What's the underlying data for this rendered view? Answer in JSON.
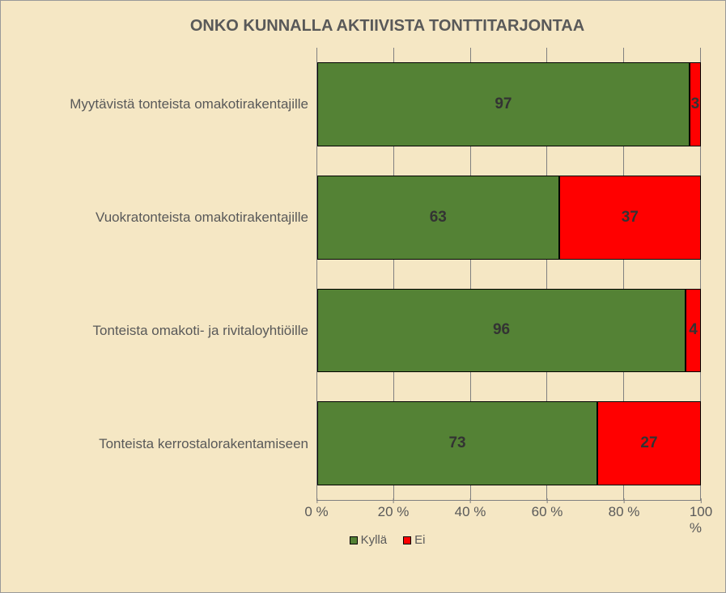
{
  "chart": {
    "type": "stacked-horizontal-bar",
    "title": "ONKO KUNNALLA AKTIIVISTA TONTTITARJONTAA",
    "title_fontsize": 20,
    "title_color": "#595959",
    "background_color": "#f5e7c4",
    "colors": {
      "yes": "#548235",
      "no": "#ff0000"
    },
    "categories": [
      {
        "label": "Myytävistä tonteista omakotirakentajille",
        "yes": 97,
        "no": 3
      },
      {
        "label": "Vuokratonteista omakotirakentajille",
        "yes": 63,
        "no": 37
      },
      {
        "label": "Tonteista omakoti- ja rivitaloyhtiöille",
        "yes": 96,
        "no": 4
      },
      {
        "label": "Tonteista kerrostalorakentamiseen",
        "yes": 73,
        "no": 27
      }
    ],
    "x_ticks": [
      "0 %",
      "20 %",
      "40 %",
      "60 %",
      "80 %",
      "100 %"
    ],
    "x_tick_positions": [
      0,
      20,
      40,
      60,
      80,
      100
    ],
    "xlim": [
      0,
      100
    ],
    "label_fontsize": 17,
    "value_fontsize": 19,
    "tick_fontsize": 17,
    "legend_fontsize": 15,
    "legend": {
      "yes": "Kyllä",
      "no": "Ei"
    },
    "grid_color": "#808080",
    "text_color": "#595959"
  }
}
